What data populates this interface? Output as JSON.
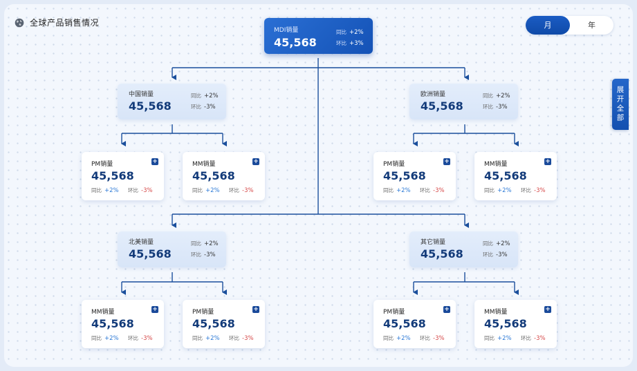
{
  "header": {
    "title": "全球产品销售情况",
    "icon": "globe-icon"
  },
  "toggle": {
    "month": "月",
    "year": "年",
    "selected": "月"
  },
  "expand_label": "展开全部",
  "root": {
    "label": "MDI销量",
    "value": "45,568",
    "yoy_label": "同比",
    "yoy": "+2%",
    "mom_label": "环比",
    "mom": "+3%"
  },
  "regions": [
    {
      "label": "中国销量",
      "value": "45,568",
      "yoy_label": "同比",
      "yoy": "+2%",
      "mom_label": "环比",
      "mom": "-3%"
    },
    {
      "label": "欧洲销量",
      "value": "45,568",
      "yoy_label": "同比",
      "yoy": "+2%",
      "mom_label": "环比",
      "mom": "-3%"
    },
    {
      "label": "北美销量",
      "value": "45,568",
      "yoy_label": "同比",
      "yoy": "+2%",
      "mom_label": "环比",
      "mom": "-3%"
    },
    {
      "label": "其它销量",
      "value": "45,568",
      "yoy_label": "同比",
      "yoy": "+2%",
      "mom_label": "环比",
      "mom": "-3%"
    }
  ],
  "leaves": [
    {
      "label": "PM销量",
      "value": "45,568",
      "yoy_label": "同比",
      "yoy": "+2%",
      "mom_label": "环比",
      "mom": "-3%",
      "expand": "+"
    },
    {
      "label": "MM销量",
      "value": "45,568",
      "yoy_label": "同比",
      "yoy": "+2%",
      "mom_label": "环比",
      "mom": "-3%",
      "expand": "+"
    },
    {
      "label": "PM销量",
      "value": "45,568",
      "yoy_label": "同比",
      "yoy": "+2%",
      "mom_label": "环比",
      "mom": "-3%",
      "expand": "+"
    },
    {
      "label": "MM销量",
      "value": "45,568",
      "yoy_label": "同比",
      "yoy": "+2%",
      "mom_label": "环比",
      "mom": "-3%",
      "expand": "+"
    },
    {
      "label": "MM销量",
      "value": "45,568",
      "yoy_label": "同比",
      "yoy": "+2%",
      "mom_label": "环比",
      "mom": "-3%",
      "expand": "+"
    },
    {
      "label": "PM销量",
      "value": "45,568",
      "yoy_label": "同比",
      "yoy": "+2%",
      "mom_label": "环比",
      "mom": "-3%",
      "expand": "+"
    },
    {
      "label": "PM销量",
      "value": "45,568",
      "yoy_label": "同比",
      "yoy": "+2%",
      "mom_label": "环比",
      "mom": "-3%",
      "expand": "+"
    },
    {
      "label": "MM销量",
      "value": "45,568",
      "yoy_label": "同比",
      "yoy": "+2%",
      "mom_label": "环比",
      "mom": "-3%",
      "expand": "+"
    }
  ],
  "colors": {
    "primary": "#1452b6",
    "line": "#1b4f9c",
    "up": "#2d7ad6",
    "down": "#d64a4a"
  }
}
